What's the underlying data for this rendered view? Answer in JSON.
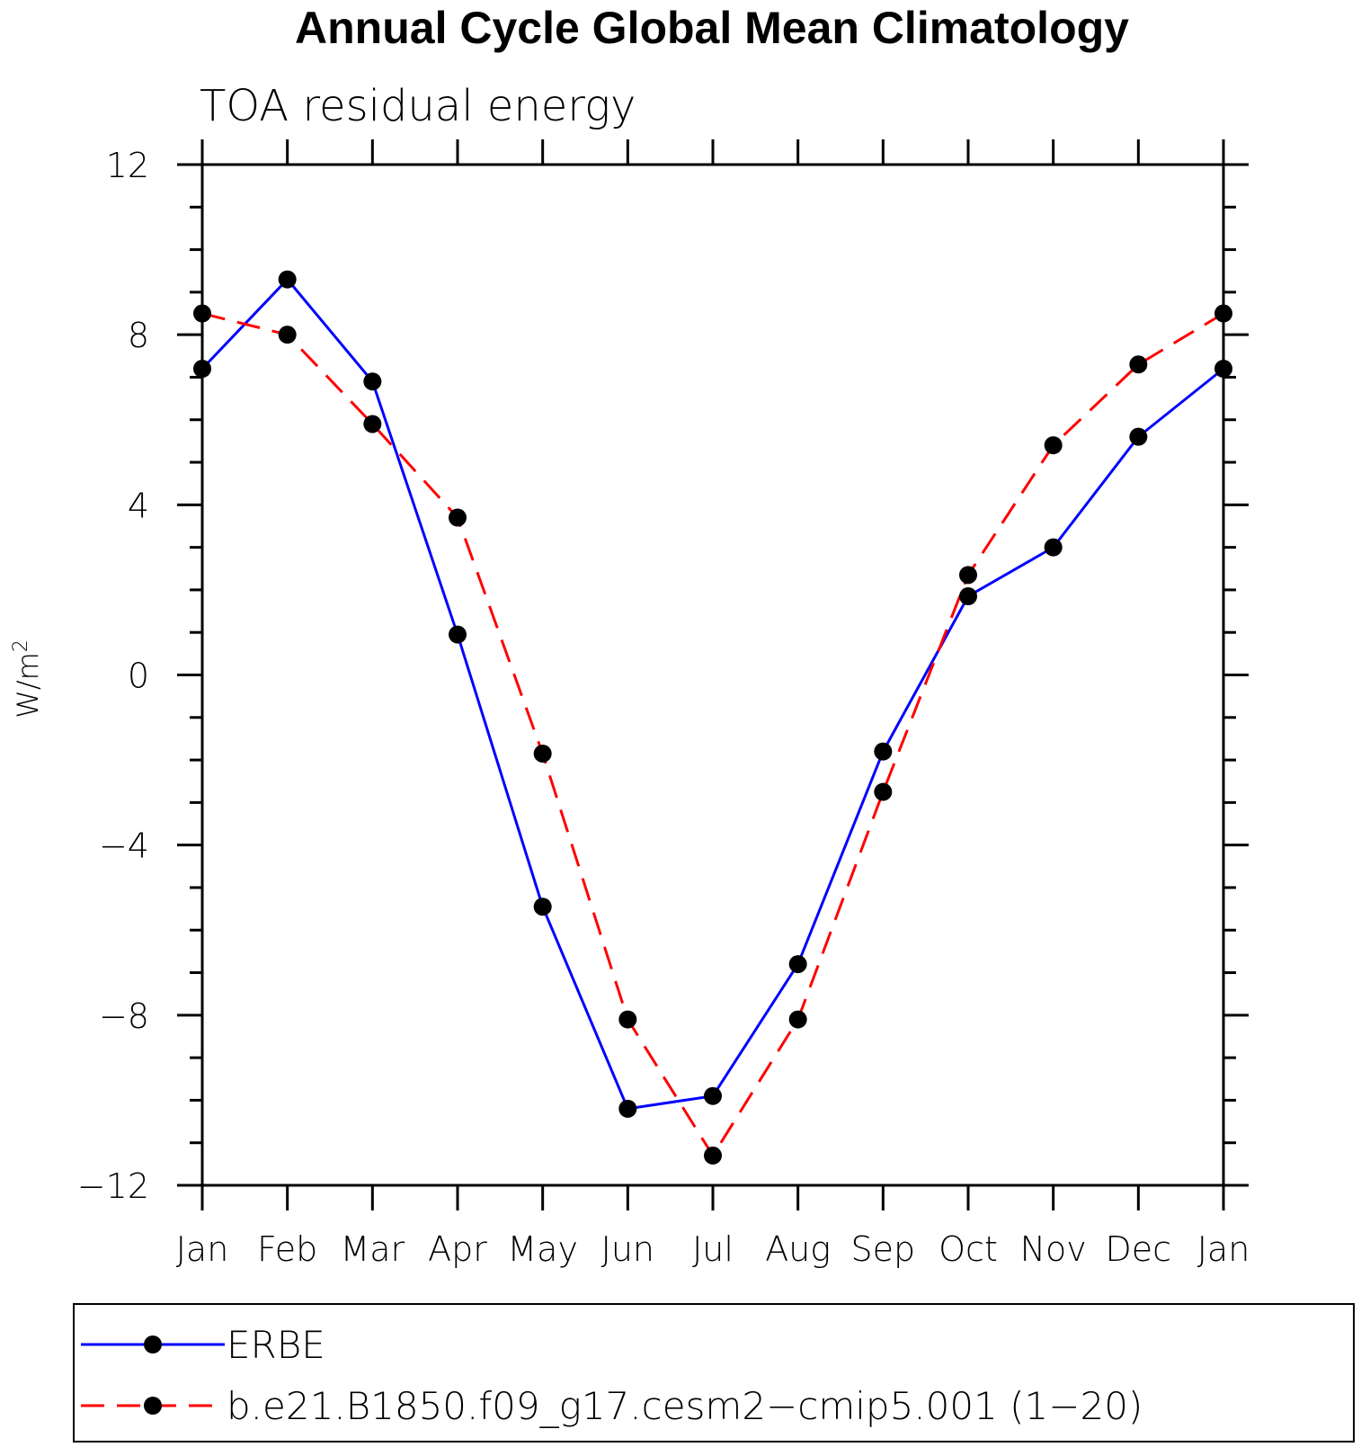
{
  "chart_data": {
    "type": "line",
    "title": "Annual Cycle Global Mean Climatology",
    "subtitle": "TOA residual energy",
    "ylabel": "W/m",
    "ylabel_sup": "2",
    "xlabel": "",
    "categories": [
      "Jan",
      "Feb",
      "Mar",
      "Apr",
      "May",
      "Jun",
      "Jul",
      "Aug",
      "Sep",
      "Oct",
      "Nov",
      "Dec",
      "Jan"
    ],
    "ylim": [
      -12,
      12
    ],
    "yticks": [
      12,
      8,
      4,
      0,
      -4,
      -8,
      -12
    ],
    "ytick_labels": [
      "12",
      "8",
      "4",
      "0",
      "−4",
      "−8",
      "−12"
    ],
    "grid": false,
    "legend_placement": "bottom",
    "series": [
      {
        "name": "ERBE",
        "color": "#0000ff",
        "style": "solid",
        "marker": "filled-circle",
        "values": [
          7.2,
          9.3,
          6.9,
          0.95,
          -5.45,
          -10.2,
          -9.9,
          -6.8,
          -1.8,
          1.85,
          3.0,
          5.6,
          7.2
        ]
      },
      {
        "name": "b.e21.B1850.f09_g17.cesm2−cmip5.001 (1−20)",
        "color": "#ff0000",
        "style": "dashed",
        "marker": "filled-circle",
        "values": [
          8.5,
          8.0,
          5.9,
          3.7,
          -1.85,
          -8.1,
          -11.3,
          -8.1,
          -2.75,
          2.35,
          5.4,
          7.3,
          8.5
        ]
      }
    ]
  }
}
